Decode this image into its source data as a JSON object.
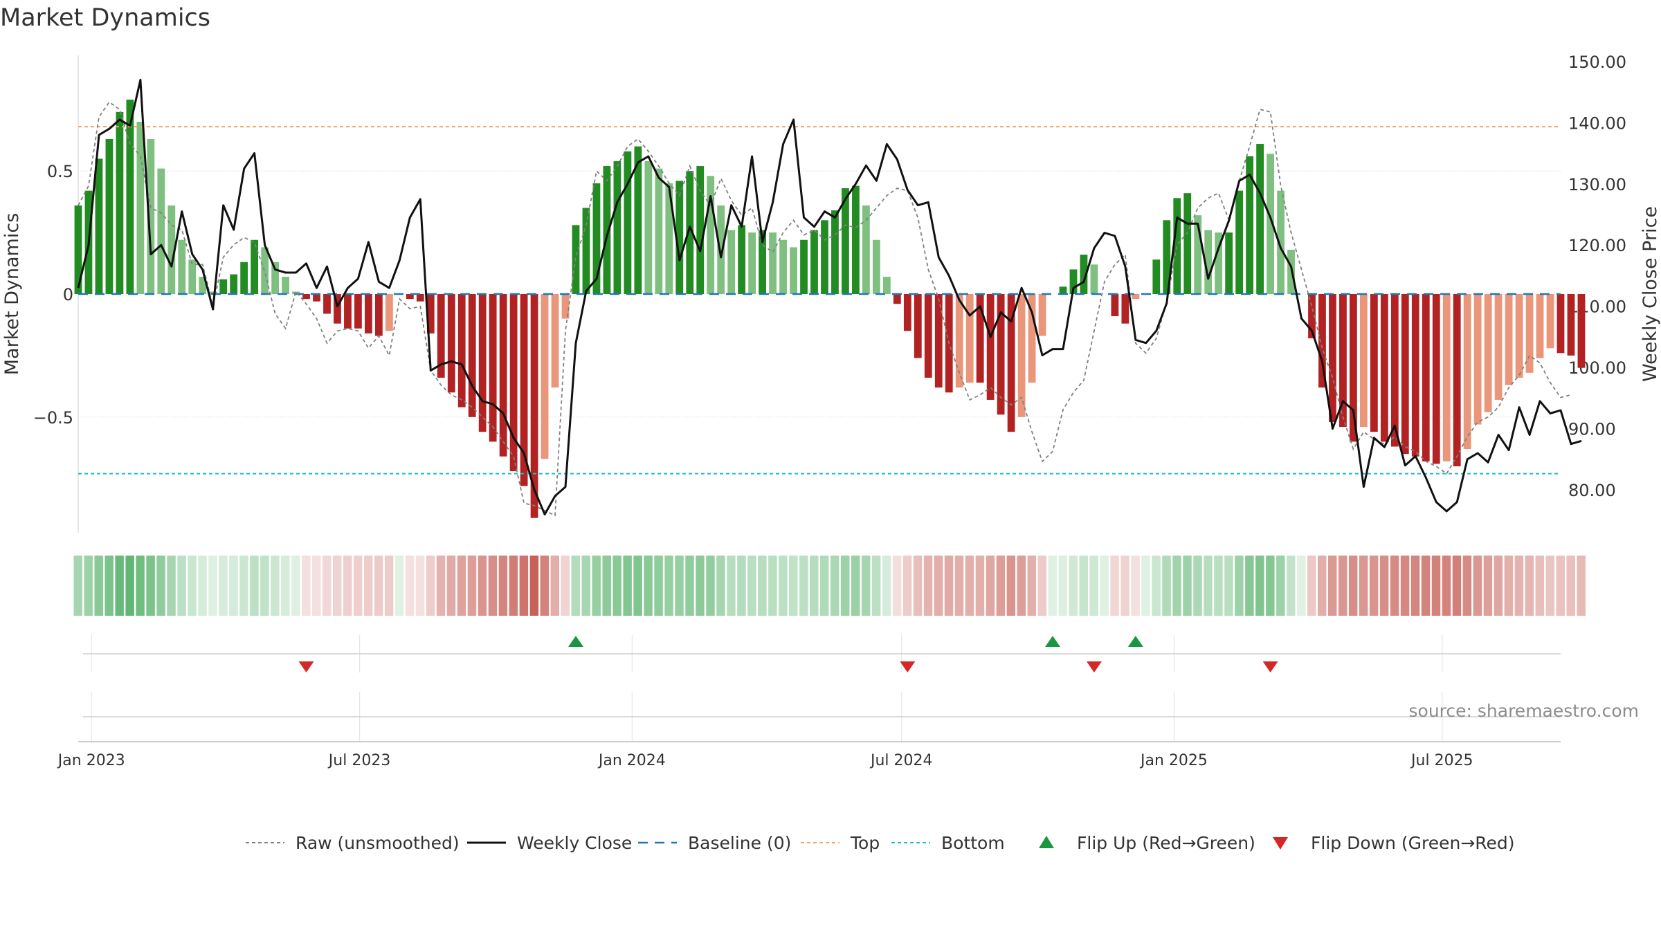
{
  "chart_data": {
    "type": "bar",
    "title": "Market Dynamics",
    "source": "source: sharemaestro.com",
    "y_left": {
      "label": "Market Dynamics",
      "ylim": [
        -0.97,
        0.97
      ],
      "ticks": [
        -0.5,
        0,
        0.5
      ],
      "tick_labels": [
        "−0.5",
        "0",
        "0.5"
      ]
    },
    "y_right": {
      "label": "Weekly Close Price",
      "ylim": [
        73,
        151
      ],
      "ticks": [
        80,
        90,
        100,
        110,
        120,
        130,
        140,
        150
      ],
      "tick_labels": [
        "80.00",
        "90.00",
        "100.00",
        "110.00",
        "120.00",
        "130.00",
        "140.00",
        "150.00"
      ]
    },
    "x_axis": {
      "start": "2022-12-23",
      "end": "2025-09-19",
      "ticks": [
        "2023-01-01",
        "2023-07-01",
        "2024-01-01",
        "2024-07-01",
        "2025-01-01",
        "2025-07-01"
      ],
      "tick_labels": [
        "Jan 2023",
        "Jul 2023",
        "Jan 2024",
        "Jul 2024",
        "Jan 2025",
        "Jul 2025"
      ]
    },
    "reference_lines": {
      "top": 0.68,
      "bottom": -0.73,
      "baseline": 0
    },
    "series": [
      {
        "name": "Weekly Close",
        "x_start": "2022-12-23",
        "x_step_days": 7,
        "values": [
          113,
          120,
          138,
          139,
          140.5,
          139.5,
          147,
          118.5,
          120,
          116.5,
          125.5,
          118.5,
          116,
          109.5,
          126.5,
          122.5,
          132.5,
          135,
          120,
          116,
          115.5,
          115.5,
          117,
          113,
          116.5,
          110,
          113,
          114.5,
          120.5,
          114,
          113,
          117.5,
          124.5,
          127.5,
          99.5,
          100.5,
          101,
          100.5,
          97,
          94.5,
          94,
          92.5,
          88.5,
          86,
          80,
          76,
          79,
          80.5,
          104,
          112.5,
          114.5,
          121.5,
          127,
          130,
          133.5,
          134.5,
          131,
          129.5,
          117.5,
          123,
          119,
          128,
          118,
          126.5,
          123,
          134.5,
          120.5,
          127,
          136.5,
          140.5,
          124.5,
          123,
          125.5,
          124.5,
          127.5,
          130,
          133,
          130.5,
          136.5,
          134,
          129,
          126.5,
          127,
          118,
          115,
          111,
          108.5,
          110,
          105,
          109,
          107.5,
          113,
          109,
          102,
          103,
          103,
          113,
          114,
          119.5,
          122,
          121.5,
          116.5,
          104.5,
          104,
          106,
          110.5,
          124.5,
          123.5,
          123.5,
          114.5,
          119.5,
          124,
          130.5,
          131.5,
          128.5,
          124.5,
          119.5,
          116.5,
          108,
          106,
          101,
          90,
          94.5,
          93,
          80.5,
          88.5,
          87,
          90.5,
          84,
          85.5,
          82,
          78,
          76.5,
          78,
          85,
          86,
          84.5,
          89,
          86.5,
          93.5,
          89,
          94.5,
          92.5,
          93,
          87.5,
          88
        ]
      },
      {
        "name": "Raw (unsmoothed)",
        "x_start": "2022-12-23",
        "x_step_days": 7,
        "values": [
          0.36,
          0.44,
          0.72,
          0.78,
          0.75,
          0.61,
          0.56,
          0.35,
          0.33,
          0.28,
          0.26,
          0.12,
          0.12,
          -0.05,
          0.15,
          0.2,
          0.23,
          0.21,
          0.09,
          -0.08,
          -0.14,
          0.01,
          -0.04,
          -0.1,
          -0.2,
          -0.15,
          -0.14,
          -0.15,
          -0.22,
          -0.17,
          -0.25,
          -0.02,
          -0.06,
          -0.05,
          -0.31,
          -0.37,
          -0.41,
          -0.43,
          -0.46,
          -0.5,
          -0.54,
          -0.6,
          -0.66,
          -0.85,
          -0.86,
          -0.88,
          -0.9,
          -0.15,
          0.15,
          0.28,
          0.5,
          0.46,
          0.52,
          0.6,
          0.63,
          0.58,
          0.52,
          0.45,
          0.4,
          0.52,
          0.42,
          0.36,
          0.47,
          0.38,
          0.32,
          0.35,
          0.2,
          0.17,
          0.25,
          0.3,
          0.24,
          0.26,
          0.22,
          0.24,
          0.28,
          0.27,
          0.3,
          0.35,
          0.4,
          0.43,
          0.42,
          0.31,
          0.1,
          -0.02,
          -0.2,
          -0.32,
          -0.43,
          -0.41,
          -0.38,
          -0.42,
          -0.45,
          -0.42,
          -0.56,
          -0.68,
          -0.64,
          -0.47,
          -0.4,
          -0.35,
          -0.15,
          0.05,
          0.12,
          0.16,
          -0.2,
          -0.24,
          -0.18,
          -0.03,
          0.2,
          0.25,
          0.35,
          0.39,
          0.41,
          0.3,
          0.46,
          0.6,
          0.75,
          0.74,
          0.44,
          0.25,
          0.1,
          -0.05,
          -0.22,
          -0.34,
          -0.5,
          -0.63,
          -0.56,
          -0.59,
          -0.61,
          -0.58,
          -0.62,
          -0.64,
          -0.68,
          -0.7,
          -0.73,
          -0.66,
          -0.58,
          -0.52,
          -0.5,
          -0.46,
          -0.38,
          -0.33,
          -0.25,
          -0.28,
          -0.36,
          -0.42,
          -0.41
        ]
      },
      {
        "name": "Market Dynamics",
        "x_start": "2022-12-23",
        "x_step_days": 7,
        "values": [
          0.36,
          0.42,
          0.55,
          0.63,
          0.74,
          0.79,
          0.7,
          0.63,
          0.51,
          0.36,
          0.22,
          0.14,
          0.07,
          0.01,
          0.06,
          0.08,
          0.13,
          0.22,
          0.19,
          0.13,
          0.07,
          0.01,
          -0.02,
          -0.03,
          -0.08,
          -0.12,
          -0.14,
          -0.14,
          -0.16,
          -0.17,
          -0.15,
          0.0,
          -0.02,
          -0.03,
          -0.16,
          -0.34,
          -0.4,
          -0.46,
          -0.5,
          -0.56,
          -0.6,
          -0.66,
          -0.72,
          -0.78,
          -0.91,
          -0.67,
          -0.38,
          -0.1,
          0.28,
          0.35,
          0.45,
          0.52,
          0.54,
          0.58,
          0.6,
          0.54,
          0.51,
          0.45,
          0.46,
          0.5,
          0.52,
          0.48,
          0.36,
          0.26,
          0.28,
          0.25,
          0.26,
          0.25,
          0.22,
          0.19,
          0.22,
          0.26,
          0.3,
          0.34,
          0.43,
          0.44,
          0.36,
          0.22,
          0.07,
          -0.04,
          -0.15,
          -0.26,
          -0.34,
          -0.38,
          -0.4,
          -0.38,
          -0.36,
          -0.36,
          -0.43,
          -0.49,
          -0.56,
          -0.5,
          -0.36,
          -0.17,
          0.0,
          0.03,
          0.1,
          0.16,
          0.12,
          0.0,
          -0.09,
          -0.12,
          -0.02,
          0.0,
          0.14,
          0.3,
          0.39,
          0.41,
          0.32,
          0.26,
          0.25,
          0.25,
          0.42,
          0.56,
          0.61,
          0.57,
          0.42,
          0.18,
          0.0,
          -0.18,
          -0.38,
          -0.52,
          -0.54,
          -0.6,
          -0.54,
          -0.56,
          -0.6,
          -0.62,
          -0.65,
          -0.66,
          -0.68,
          -0.69,
          -0.68,
          -0.7,
          -0.63,
          -0.53,
          -0.48,
          -0.43,
          -0.37,
          -0.34,
          -0.32,
          -0.26,
          -0.22,
          -0.24,
          -0.25,
          -0.3
        ]
      }
    ],
    "flip_up": [
      "2023-11-24",
      "2024-10-11",
      "2024-12-06"
    ],
    "flip_down": [
      "2023-05-26",
      "2024-07-05",
      "2024-11-08",
      "2025-03-07"
    ],
    "legend": {
      "position": "bottom",
      "entries": [
        {
          "label": "Raw (unsmoothed)",
          "kind": "dashed-gray"
        },
        {
          "label": "Weekly Close",
          "kind": "solid-black"
        },
        {
          "label": "Baseline (0)",
          "kind": "dashed-blue"
        },
        {
          "label": "Top",
          "kind": "dashed-orange"
        },
        {
          "label": "Bottom",
          "kind": "dashed-cyan"
        },
        {
          "label": "Flip Up (Red→Green)",
          "kind": "triangle-up-green"
        },
        {
          "label": "Flip Down (Green→Red)",
          "kind": "triangle-down-red"
        }
      ]
    },
    "colors": {
      "strong_green": "#228b22",
      "light_green": "#7fbf7f",
      "strong_red": "#b22222",
      "light_red": "#e9967a",
      "price": "#111111",
      "raw": "#808080",
      "baseline": "#1f77b4",
      "top": "#f4a460",
      "bottom": "#17becf",
      "flip_up": "#1a9641",
      "flip_down": "#d62728",
      "grid": "#e6e6e6"
    },
    "grid": true
  }
}
